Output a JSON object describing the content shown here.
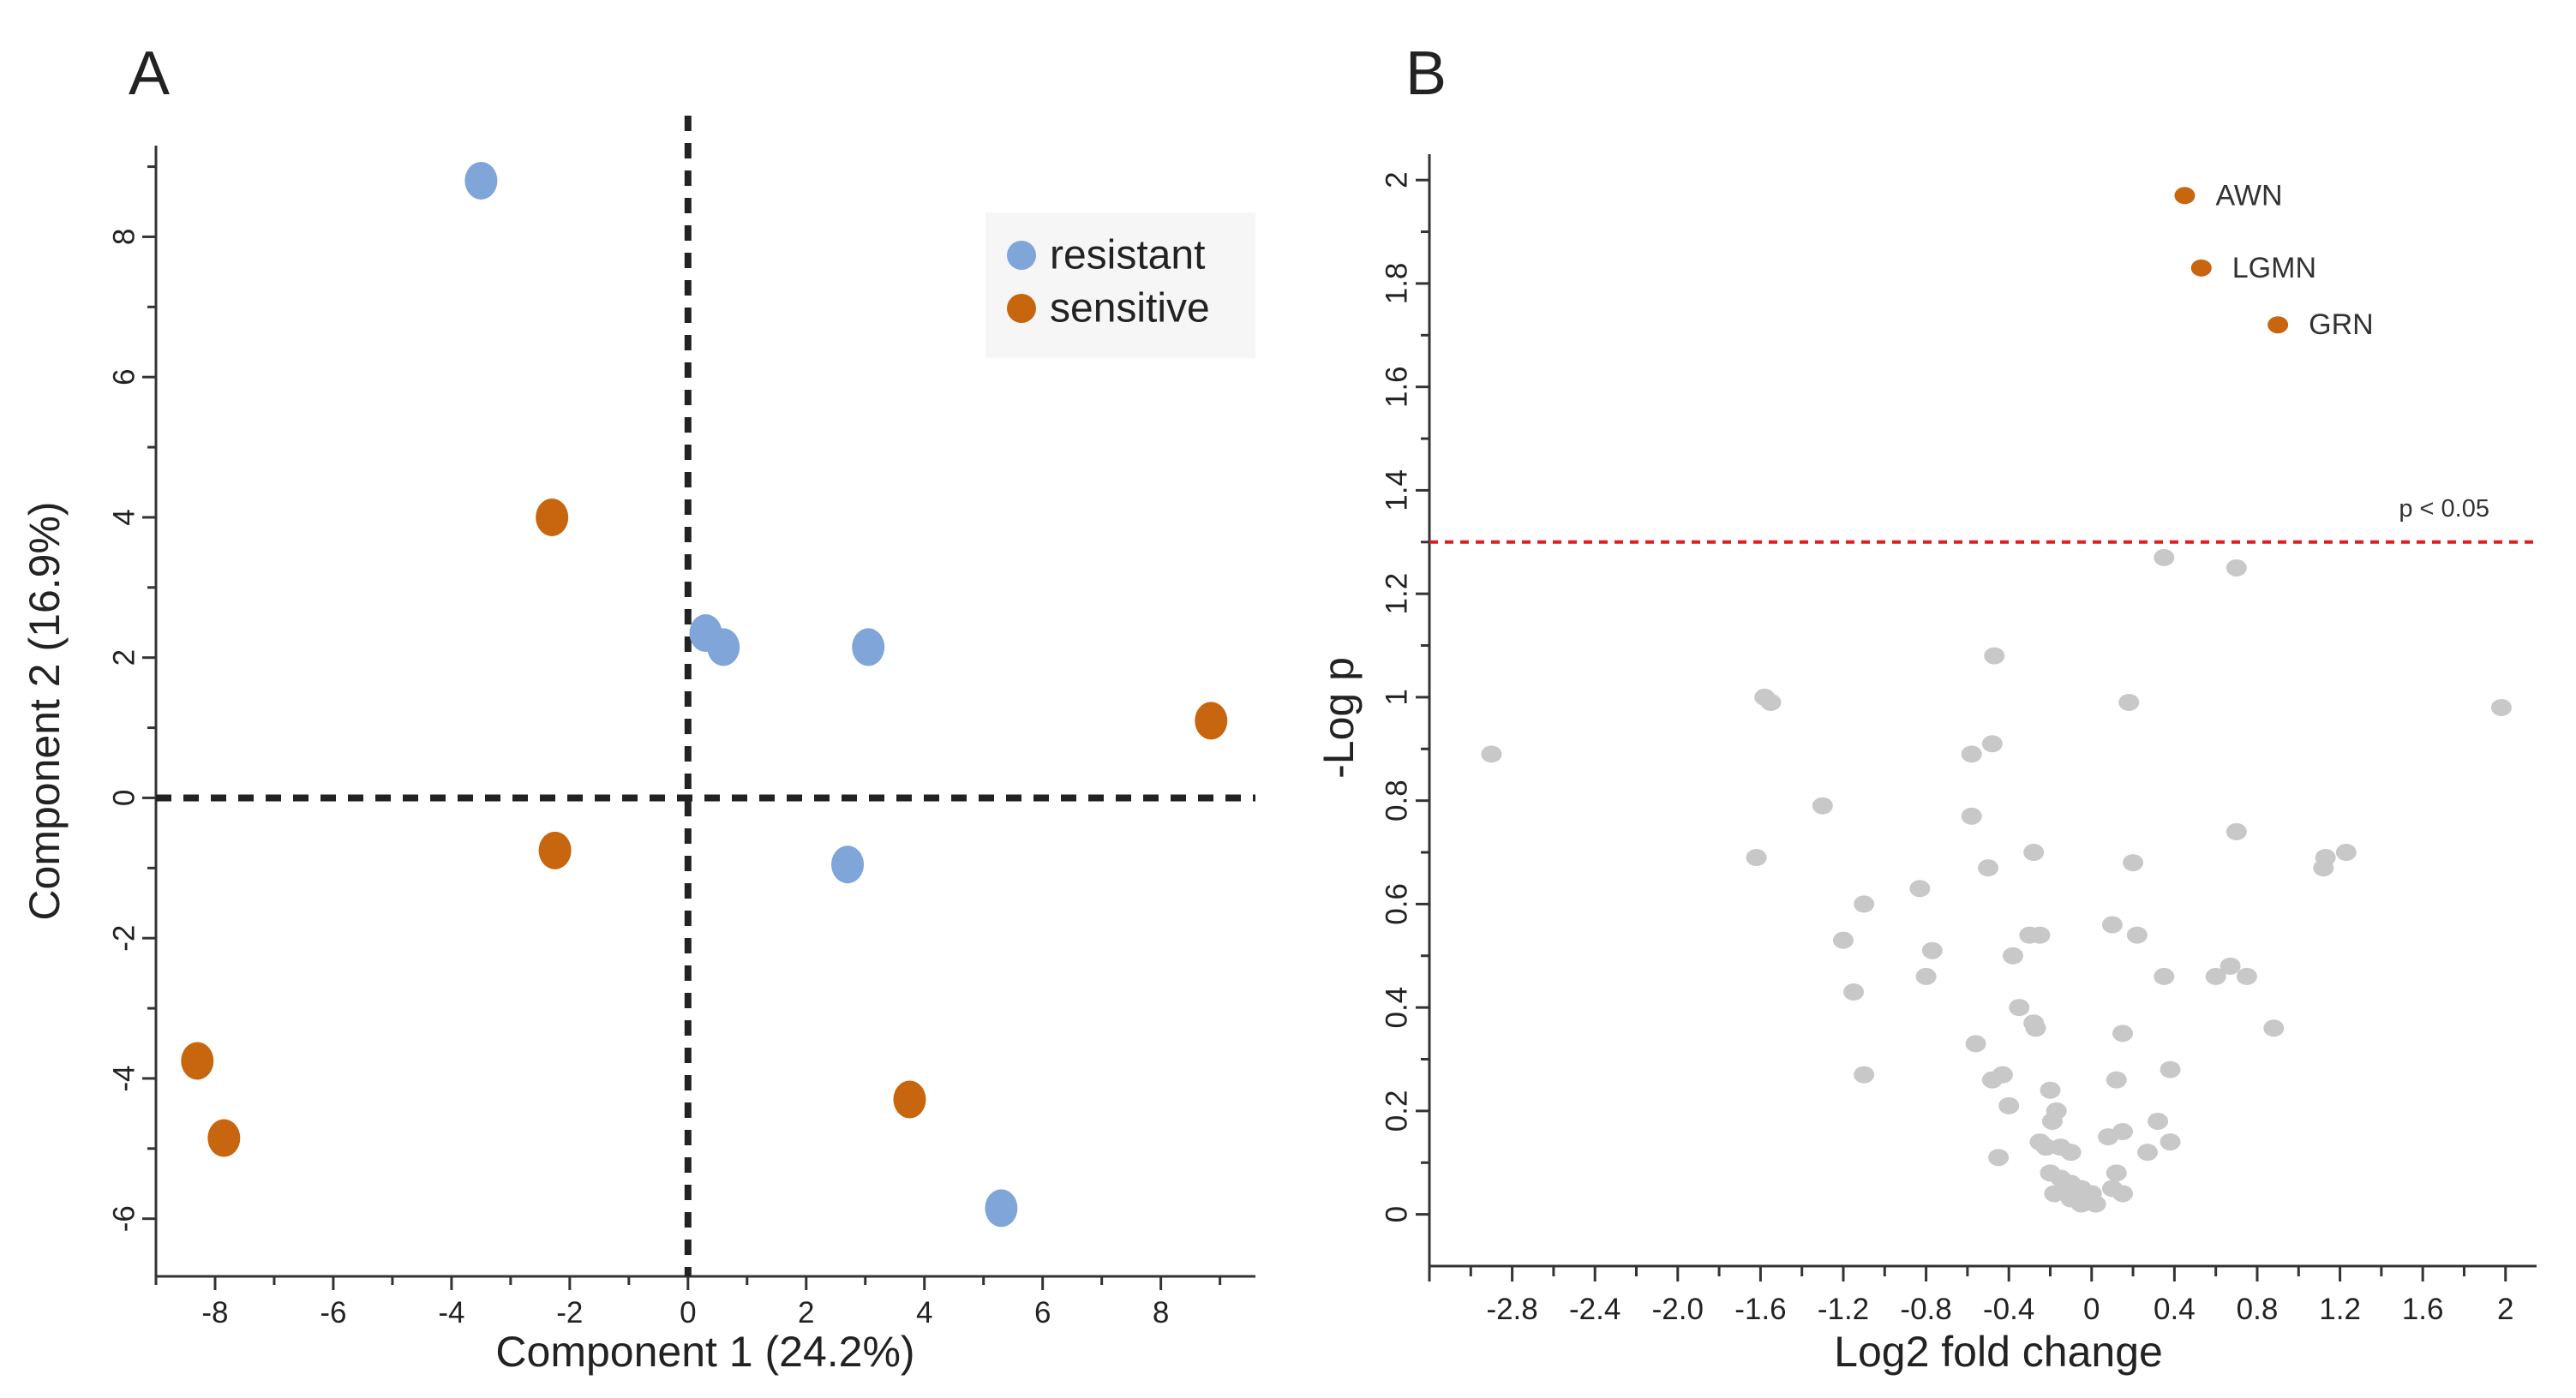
{
  "colors": {
    "resistant": "#7fa5d9",
    "sensitive": "#c8650f",
    "grey_point": "#c8c8c8",
    "threshold": "#e01e1e",
    "axis": "#333333"
  },
  "chart_data": [
    {
      "panel": "A",
      "type": "scatter",
      "title": "",
      "xlabel": "Component 1 (24.2%)",
      "ylabel": "Component 2 (16.9%)",
      "xlim": [
        -9,
        9.6
      ],
      "ylim": [
        -6.7,
        9.3
      ],
      "xticks": [
        -8,
        -6,
        -4,
        -2,
        0,
        2,
        4,
        6,
        8
      ],
      "yticks": [
        -6,
        -4,
        -2,
        0,
        2,
        4,
        6,
        8
      ],
      "grid": false,
      "reference_lines": {
        "x": 0,
        "y": 0,
        "style": "dashed"
      },
      "legend": {
        "position": "top-right",
        "entries": [
          "resistant",
          "sensitive"
        ]
      },
      "series": [
        {
          "name": "resistant",
          "points": [
            {
              "x": -3.5,
              "y": 8.8
            },
            {
              "x": 0.3,
              "y": 2.35
            },
            {
              "x": 0.6,
              "y": 2.15
            },
            {
              "x": 3.05,
              "y": 2.15
            },
            {
              "x": 2.7,
              "y": -0.95
            },
            {
              "x": 5.3,
              "y": -5.85
            }
          ]
        },
        {
          "name": "sensitive",
          "points": [
            {
              "x": -2.3,
              "y": 4.0
            },
            {
              "x": 8.85,
              "y": 1.1
            },
            {
              "x": -2.25,
              "y": -0.75
            },
            {
              "x": -8.3,
              "y": -3.75
            },
            {
              "x": -7.85,
              "y": -4.85
            },
            {
              "x": 3.75,
              "y": -4.3
            }
          ]
        }
      ]
    },
    {
      "panel": "B",
      "type": "scatter",
      "title": "",
      "xlabel": "Log2 fold change",
      "ylabel": "-Log p",
      "xlim": [
        -3.2,
        2.15
      ],
      "ylim": [
        -0.1,
        2.05
      ],
      "xticks": [
        -2.8,
        -2.4,
        -2.0,
        -1.6,
        -1.2,
        -0.8,
        -0.4,
        0,
        0.4,
        0.8,
        1.2,
        1.6,
        2
      ],
      "xtick_labels": [
        "-2.8",
        "-2.4",
        "-2.0",
        "-1.6",
        "-1.2",
        "-0.8",
        "-0.4",
        "0",
        "0.4",
        "0.8",
        "1.2",
        "1.6",
        "2"
      ],
      "yticks": [
        0,
        0.2,
        0.4,
        0.6,
        0.8,
        1,
        1.2,
        1.4,
        1.6,
        1.8,
        2
      ],
      "ytick_labels": [
        "0",
        "0.2",
        "0.4",
        "0.6",
        "0.8",
        "1",
        "1.2",
        "1.4",
        "1.6",
        "1.8",
        "2"
      ],
      "grid": false,
      "threshold": {
        "y": 1.3,
        "label": "p < 0.05",
        "style": "dashed"
      },
      "significant": [
        {
          "name": "AWN",
          "x": 0.45,
          "y": 1.97
        },
        {
          "name": "LGMN",
          "x": 0.53,
          "y": 1.83
        },
        {
          "name": "GRN",
          "x": 0.9,
          "y": 1.72
        }
      ],
      "nonsignificant": [
        [
          -2.9,
          0.89
        ],
        [
          -1.58,
          1.0
        ],
        [
          -1.55,
          0.99
        ],
        [
          -1.62,
          0.69
        ],
        [
          -1.3,
          0.79
        ],
        [
          -1.1,
          0.6
        ],
        [
          -1.2,
          0.53
        ],
        [
          -1.15,
          0.43
        ],
        [
          -1.1,
          0.27
        ],
        [
          -0.83,
          0.63
        ],
        [
          -0.77,
          0.51
        ],
        [
          -0.8,
          0.46
        ],
        [
          -0.47,
          1.08
        ],
        [
          -0.48,
          0.91
        ],
        [
          -0.58,
          0.89
        ],
        [
          -0.58,
          0.77
        ],
        [
          -0.5,
          0.67
        ],
        [
          -0.28,
          0.7
        ],
        [
          -0.3,
          0.54
        ],
        [
          -0.25,
          0.54
        ],
        [
          -0.38,
          0.5
        ],
        [
          -0.35,
          0.4
        ],
        [
          -0.28,
          0.37
        ],
        [
          -0.27,
          0.36
        ],
        [
          -0.56,
          0.33
        ],
        [
          -0.43,
          0.27
        ],
        [
          -0.48,
          0.26
        ],
        [
          -0.4,
          0.21
        ],
        [
          -0.2,
          0.24
        ],
        [
          -0.17,
          0.2
        ],
        [
          -0.19,
          0.18
        ],
        [
          -0.25,
          0.14
        ],
        [
          -0.22,
          0.13
        ],
        [
          -0.15,
          0.13
        ],
        [
          -0.1,
          0.12
        ],
        [
          -0.45,
          0.11
        ],
        [
          -0.2,
          0.08
        ],
        [
          -0.15,
          0.07
        ],
        [
          -0.1,
          0.06
        ],
        [
          -0.05,
          0.05
        ],
        [
          0.0,
          0.04
        ],
        [
          -0.18,
          0.04
        ],
        [
          -0.1,
          0.03
        ],
        [
          -0.05,
          0.02
        ],
        [
          0.02,
          0.02
        ],
        [
          -0.12,
          0.05
        ],
        [
          0.18,
          0.99
        ],
        [
          0.2,
          0.68
        ],
        [
          0.1,
          0.56
        ],
        [
          0.22,
          0.54
        ],
        [
          0.35,
          0.46
        ],
        [
          0.15,
          0.35
        ],
        [
          0.38,
          0.28
        ],
        [
          0.12,
          0.26
        ],
        [
          0.32,
          0.18
        ],
        [
          0.15,
          0.16
        ],
        [
          0.38,
          0.14
        ],
        [
          0.08,
          0.15
        ],
        [
          0.27,
          0.12
        ],
        [
          0.12,
          0.08
        ],
        [
          0.1,
          0.05
        ],
        [
          0.15,
          0.04
        ],
        [
          0.7,
          0.74
        ],
        [
          0.6,
          0.46
        ],
        [
          0.67,
          0.48
        ],
        [
          0.75,
          0.46
        ],
        [
          0.88,
          0.36
        ],
        [
          1.12,
          0.67
        ],
        [
          1.13,
          0.69
        ],
        [
          1.23,
          0.7
        ],
        [
          1.98,
          0.98
        ],
        [
          0.35,
          1.27
        ],
        [
          0.7,
          1.25
        ]
      ]
    }
  ]
}
